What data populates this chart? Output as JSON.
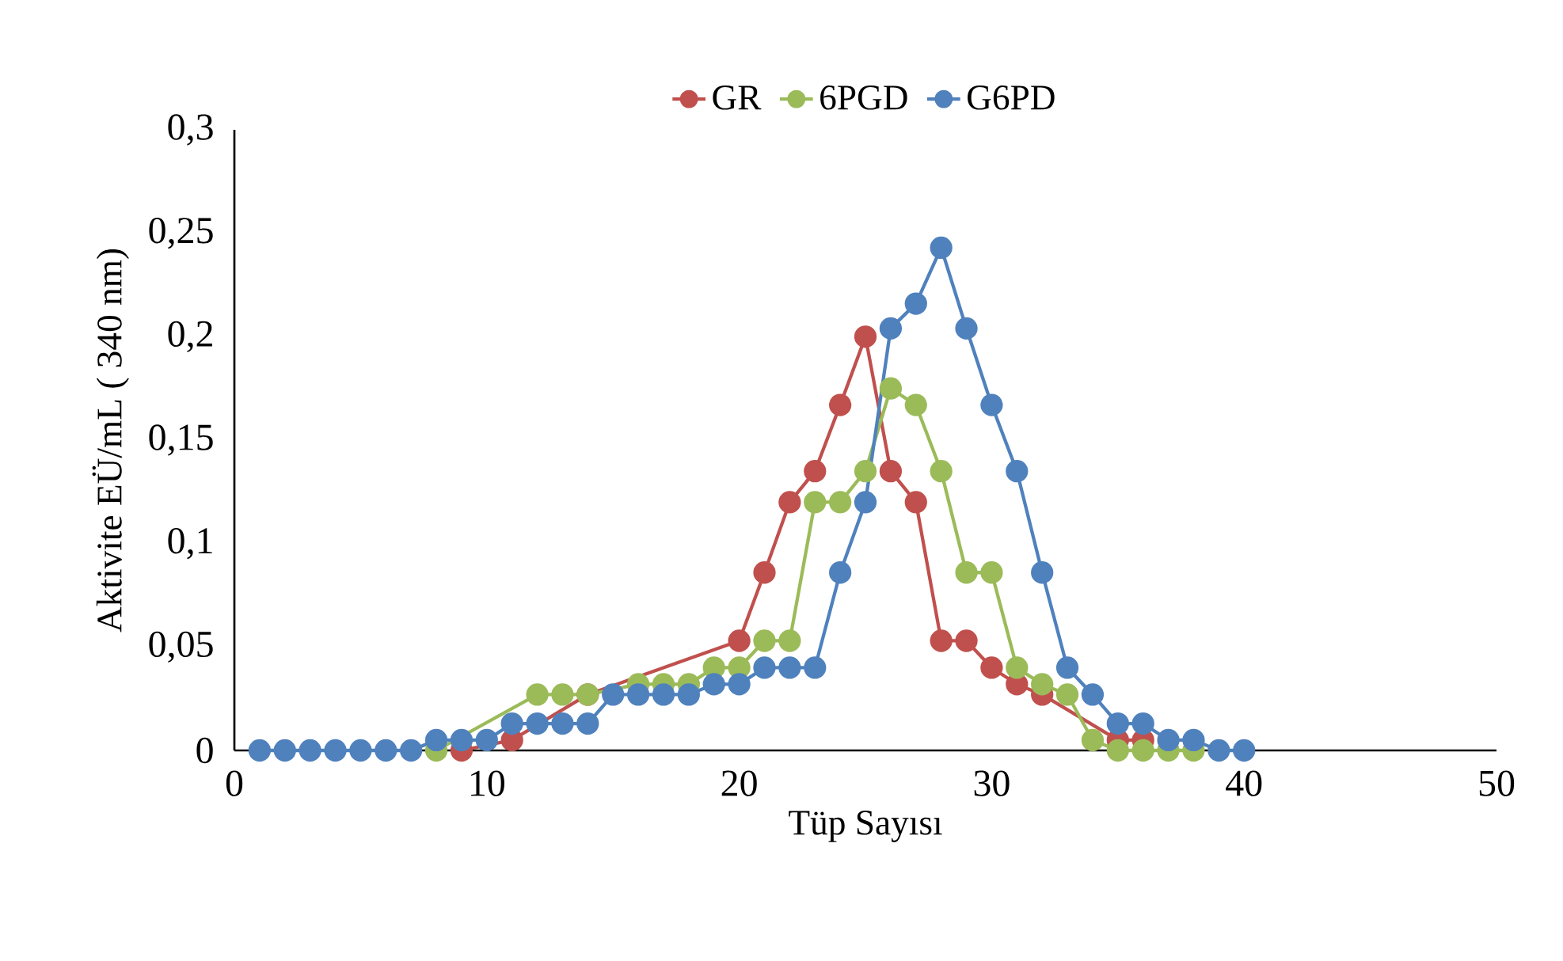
{
  "chart_data": {
    "type": "line",
    "xlabel": "Tüp Sayısı",
    "ylabel": "Aktivite EÜ/mL ( 340 nm)",
    "xlim": [
      0,
      50
    ],
    "xticks": [
      0,
      10,
      20,
      30,
      40,
      50
    ],
    "ylim": [
      0,
      0.3
    ],
    "yticks": [
      0,
      {
        "value": 0.05,
        "label": "0,05"
      },
      {
        "value": 0.1,
        "label": "0,1"
      },
      {
        "value": 0.15,
        "label": "0,15"
      },
      {
        "value": 0.2,
        "label": "0,2"
      },
      {
        "value": 0.25,
        "label": "0,25"
      },
      {
        "value": 0.3,
        "label": "0,3"
      }
    ],
    "grid": false,
    "legend": "top",
    "marker": "circle",
    "line_style": "solid",
    "series": [
      {
        "name": "GR",
        "color": "#c0504d",
        "x": [
          9,
          10,
          11,
          12,
          13,
          14,
          15,
          16,
          17,
          18,
          19,
          20,
          21,
          22,
          23,
          24,
          25,
          26,
          27,
          28,
          29,
          30,
          31,
          32,
          33,
          34,
          35,
          36
        ],
        "values": [
          0,
          null,
          0.005,
          null,
          null,
          0.027,
          null,
          null,
          null,
          null,
          null,
          0.053,
          0.086,
          0.12,
          0.135,
          0.167,
          0.2,
          0.135,
          0.12,
          0.053,
          0.053,
          0.04,
          0.032,
          0.027,
          null,
          null,
          0.005,
          0.005
        ]
      },
      {
        "name": "6PGD",
        "color": "#9bbb59",
        "x": [
          8,
          9,
          10,
          11,
          12,
          13,
          14,
          15,
          16,
          17,
          18,
          19,
          20,
          21,
          22,
          23,
          24,
          25,
          26,
          27,
          28,
          29,
          30,
          31,
          32,
          33,
          34,
          35,
          36,
          37,
          38
        ],
        "values": [
          0,
          null,
          null,
          null,
          0.027,
          0.027,
          0.027,
          null,
          0.032,
          0.032,
          0.032,
          0.04,
          0.04,
          0.053,
          0.053,
          0.12,
          0.12,
          0.135,
          0.175,
          0.167,
          0.135,
          0.086,
          0.086,
          0.04,
          0.032,
          0.027,
          0.005,
          0,
          0,
          0,
          0
        ]
      },
      {
        "name": "G6PD",
        "color": "#4f81bd",
        "x": [
          1,
          2,
          3,
          4,
          5,
          6,
          7,
          8,
          9,
          10,
          11,
          12,
          13,
          14,
          15,
          16,
          17,
          18,
          19,
          20,
          21,
          22,
          23,
          24,
          25,
          26,
          27,
          28,
          29,
          30,
          31,
          32,
          33,
          34,
          35,
          36,
          37,
          38,
          39,
          40
        ],
        "values": [
          0,
          0,
          0,
          0,
          0,
          0,
          0,
          0.005,
          0.005,
          0.005,
          0.013,
          0.013,
          0.013,
          0.013,
          0.027,
          0.027,
          0.027,
          0.027,
          0.032,
          0.032,
          0.04,
          0.04,
          0.04,
          0.086,
          0.12,
          0.204,
          0.216,
          0.243,
          0.204,
          0.167,
          0.135,
          0.086,
          0.04,
          0.027,
          0.013,
          0.013,
          0.005,
          0.005,
          0,
          0
        ]
      }
    ]
  }
}
